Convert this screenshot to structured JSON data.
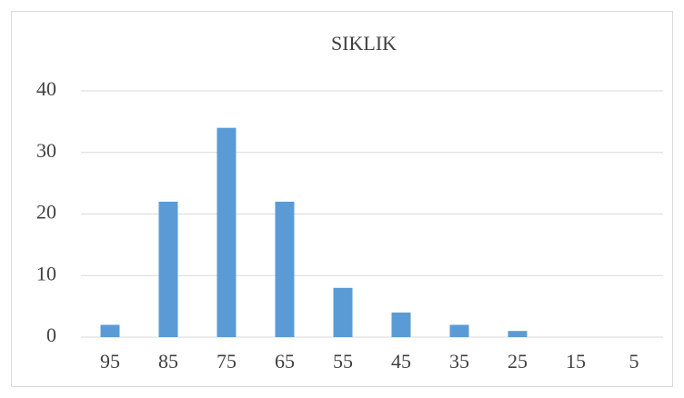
{
  "chart_data": {
    "type": "bar",
    "title": "SIKLIK",
    "categories": [
      "95",
      "85",
      "75",
      "65",
      "55",
      "45",
      "35",
      "25",
      "15",
      "5"
    ],
    "values": [
      2,
      22,
      34,
      22,
      8,
      4,
      2,
      1,
      0,
      0
    ],
    "color": "#5b9bd5",
    "ylim": [
      0,
      40
    ],
    "yticks": [
      0,
      10,
      20,
      30,
      40
    ],
    "grid": true
  }
}
